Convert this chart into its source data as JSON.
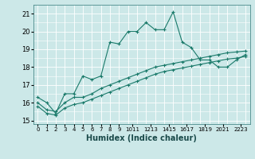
{
  "xlabel": "Humidex (Indice chaleur)",
  "ylabel": "",
  "bg_color": "#cce8e8",
  "line_color": "#1a7a6a",
  "grid_color": "#ffffff",
  "xlim": [
    -0.5,
    23.5
  ],
  "ylim": [
    14.8,
    21.5
  ],
  "yticks": [
    15,
    16,
    17,
    18,
    19,
    20,
    21
  ],
  "xtick_labels": [
    "0",
    "1",
    "2",
    "3",
    "4",
    "5",
    "6",
    "7",
    "8",
    "9",
    "1011",
    "1213",
    "1415",
    "1617",
    "1819",
    "2021",
    "2223"
  ],
  "xtick_positions": [
    0,
    1,
    2,
    3,
    4,
    5,
    6,
    7,
    8,
    9,
    10.5,
    12.5,
    14.5,
    16.5,
    18.5,
    20.5,
    22.5
  ],
  "series1_x": [
    0,
    1,
    2,
    3,
    4,
    5,
    6,
    7,
    8,
    9,
    10,
    11,
    12,
    13,
    14,
    15,
    16,
    17,
    18,
    19,
    20,
    21,
    22,
    23
  ],
  "series1_y": [
    16.3,
    16.0,
    15.4,
    16.5,
    16.5,
    17.5,
    17.3,
    17.5,
    19.4,
    19.3,
    20.0,
    20.0,
    20.5,
    20.1,
    20.1,
    21.1,
    19.4,
    19.1,
    18.4,
    18.4,
    18.0,
    18.0,
    18.4,
    18.7
  ],
  "series2_x": [
    0,
    1,
    2,
    3,
    4,
    5,
    6,
    7,
    8,
    9,
    10,
    11,
    12,
    13,
    14,
    15,
    16,
    17,
    18,
    19,
    20,
    21,
    22,
    23
  ],
  "series2_y": [
    16.0,
    15.6,
    15.5,
    16.0,
    16.3,
    16.3,
    16.5,
    16.8,
    17.0,
    17.2,
    17.4,
    17.6,
    17.8,
    18.0,
    18.1,
    18.2,
    18.3,
    18.4,
    18.5,
    18.6,
    18.7,
    18.8,
    18.85,
    18.9
  ],
  "series3_x": [
    0,
    1,
    2,
    3,
    4,
    5,
    6,
    7,
    8,
    9,
    10,
    11,
    12,
    13,
    14,
    15,
    16,
    17,
    18,
    19,
    20,
    21,
    22,
    23
  ],
  "series3_y": [
    15.8,
    15.4,
    15.3,
    15.7,
    15.9,
    16.0,
    16.2,
    16.4,
    16.6,
    16.8,
    17.0,
    17.2,
    17.4,
    17.6,
    17.75,
    17.85,
    17.95,
    18.05,
    18.15,
    18.25,
    18.35,
    18.45,
    18.5,
    18.6
  ]
}
